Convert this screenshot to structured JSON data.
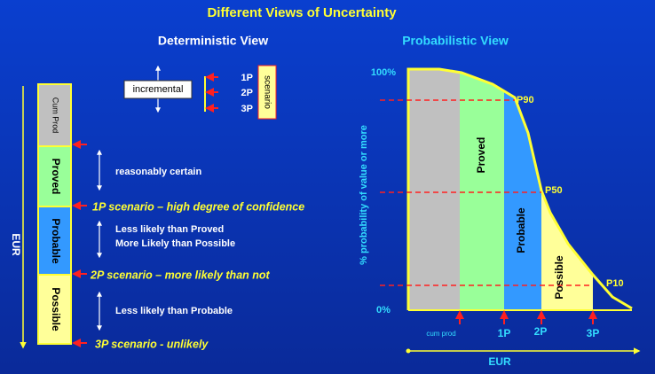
{
  "title": "Different Views of Uncertainty",
  "deterministic": {
    "heading": "Deterministic View",
    "axis_label": "EUR",
    "layers": [
      "Cum Prod",
      "Proved",
      "Probable",
      "Possible"
    ],
    "notes": [
      "reasonably certain",
      "Less likely than Proved",
      "More Likely than Possible",
      "Less likely than Probable"
    ],
    "scenarios": [
      "1P scenario – high degree of confidence",
      "2P scenario – more likely than not",
      "3P scenario - unlikely"
    ],
    "legend": {
      "box": "incremental",
      "levels": [
        "1P",
        "2P",
        "3P"
      ],
      "scenario": "scenario"
    }
  },
  "probabilistic": {
    "heading": "Probabilistic View",
    "y_label": "% probability of value or more",
    "y_top": "100%",
    "y_bottom": "0%",
    "regions": [
      "Proved",
      "Probable",
      "Possible"
    ],
    "percentiles": [
      "P90",
      "P50",
      "P10"
    ],
    "x_labels": [
      "cum prod",
      "1P",
      "2P",
      "3P"
    ],
    "x_axis_label": "EUR"
  }
}
